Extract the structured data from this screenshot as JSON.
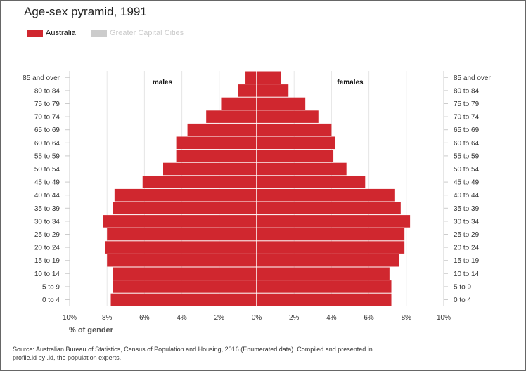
{
  "title": "Age-sex pyramid, 1991",
  "legend": [
    {
      "label": "Australia",
      "color": "#d0272f",
      "active": true
    },
    {
      "label": "Greater Capital Cities",
      "color": "#cccccc",
      "active": false
    }
  ],
  "source": "Source: Australian Bureau of Statistics, Census of Population and Housing, 2016 (Enumerated data). Compiled and presented in profile.id by .id, the population experts.",
  "chart_data": {
    "type": "bar",
    "orientation": "horizontal-pyramid",
    "categories": [
      "85 and over",
      "80 to 84",
      "75 to 79",
      "70 to 74",
      "65 to 69",
      "60 to 64",
      "55 to 59",
      "50 to 54",
      "45 to 49",
      "40 to 44",
      "35 to 39",
      "30 to 34",
      "25 to 29",
      "20 to 24",
      "15 to 19",
      "10 to 14",
      "5 to 9",
      "0 to 4"
    ],
    "series": [
      {
        "name": "males",
        "color": "#d0272f",
        "values": [
          0.6,
          1.0,
          1.9,
          2.7,
          3.7,
          4.3,
          4.3,
          5.0,
          6.1,
          7.6,
          7.7,
          8.2,
          8.0,
          8.1,
          8.0,
          7.7,
          7.7,
          7.8
        ]
      },
      {
        "name": "females",
        "color": "#d0272f",
        "values": [
          1.3,
          1.7,
          2.6,
          3.3,
          4.0,
          4.2,
          4.1,
          4.8,
          5.8,
          7.4,
          7.7,
          8.2,
          7.9,
          7.9,
          7.6,
          7.1,
          7.2,
          7.2
        ]
      }
    ],
    "x_ticks": [
      "10%",
      "8%",
      "6%",
      "4%",
      "2%",
      "0%",
      "2%",
      "4%",
      "6%",
      "8%",
      "10%"
    ],
    "xlim": [
      -10,
      10
    ],
    "xlabel": "% of gender",
    "side_labels": {
      "left": "males",
      "right": "females"
    },
    "grid": true
  }
}
